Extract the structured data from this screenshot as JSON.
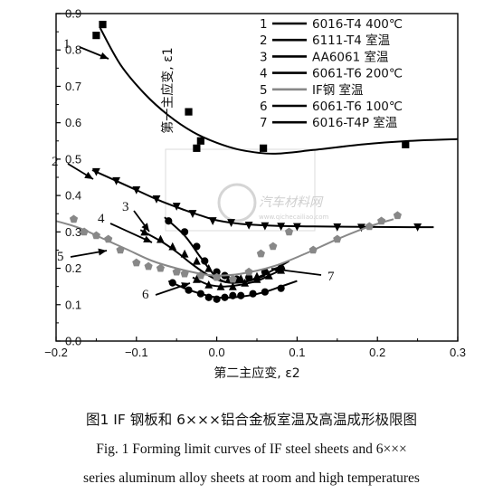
{
  "chart_data": {
    "type": "line",
    "xlabel": "第二主应变, ε2",
    "ylabel": "第一主应变, ε1",
    "xlim": [
      -0.2,
      0.3
    ],
    "ylim": [
      0.0,
      0.9
    ],
    "xticks": [
      "−0.2",
      "−0.1",
      "0.0",
      "0.1",
      "0.2",
      "0.3"
    ],
    "yticks": [
      "0.0",
      "0.1",
      "0.2",
      "0.3",
      "0.4",
      "0.5",
      "0.6",
      "0.7",
      "0.8",
      "0.9"
    ],
    "legend_position": "top-right",
    "legend": [
      {
        "num": "1",
        "label": "6016-T4 400℃",
        "color": "#000000"
      },
      {
        "num": "2",
        "label": "6111-T4 室温",
        "color": "#000000"
      },
      {
        "num": "3",
        "label": "AA6061 室温",
        "color": "#000000"
      },
      {
        "num": "4",
        "label": "6061-T6 200℃",
        "color": "#000000"
      },
      {
        "num": "5",
        "label": "IF钢 室温",
        "color": "#888888"
      },
      {
        "num": "6",
        "label": "6061-T6 100℃",
        "color": "#000000"
      },
      {
        "num": "7",
        "label": "6016-T4P 室温",
        "color": "#000000"
      }
    ],
    "series": [
      {
        "num": "1",
        "marker": "square",
        "color": "#000000",
        "curve": [
          [
            -0.145,
            0.86
          ],
          [
            -0.12,
            0.76
          ],
          [
            -0.09,
            0.68
          ],
          [
            -0.06,
            0.62
          ],
          [
            -0.03,
            0.575
          ],
          [
            0.0,
            0.545
          ],
          [
            0.03,
            0.525
          ],
          [
            0.07,
            0.515
          ],
          [
            0.12,
            0.525
          ],
          [
            0.18,
            0.54
          ],
          [
            0.24,
            0.55
          ],
          [
            0.3,
            0.555
          ]
        ],
        "points": [
          [
            -0.15,
            0.84
          ],
          [
            -0.142,
            0.87
          ],
          [
            -0.035,
            0.63
          ],
          [
            -0.025,
            0.53
          ],
          [
            -0.02,
            0.55
          ],
          [
            0.058,
            0.53
          ],
          [
            0.235,
            0.54
          ]
        ]
      },
      {
        "num": "2",
        "marker": "triangle-down",
        "color": "#000000",
        "curve": [
          [
            -0.155,
            0.47
          ],
          [
            -0.13,
            0.445
          ],
          [
            -0.1,
            0.415
          ],
          [
            -0.07,
            0.385
          ],
          [
            -0.04,
            0.36
          ],
          [
            -0.02,
            0.345
          ],
          [
            0.0,
            0.332
          ],
          [
            0.03,
            0.322
          ],
          [
            0.07,
            0.317
          ],
          [
            0.12,
            0.315
          ],
          [
            0.18,
            0.314
          ],
          [
            0.24,
            0.313
          ],
          [
            0.27,
            0.313
          ]
        ],
        "points": [
          [
            -0.15,
            0.465
          ],
          [
            -0.125,
            0.44
          ],
          [
            -0.1,
            0.415
          ],
          [
            -0.075,
            0.39
          ],
          [
            -0.05,
            0.37
          ],
          [
            -0.03,
            0.35
          ],
          [
            -0.005,
            0.33
          ],
          [
            0.018,
            0.325
          ],
          [
            0.04,
            0.318
          ],
          [
            0.06,
            0.316
          ],
          [
            0.08,
            0.315
          ],
          [
            0.1,
            0.314
          ],
          [
            0.15,
            0.313
          ],
          [
            0.18,
            0.312
          ],
          [
            0.25,
            0.313
          ]
        ]
      },
      {
        "num": "3",
        "marker": "circle",
        "color": "#000000",
        "curve": [
          [
            -0.065,
            0.34
          ],
          [
            -0.04,
            0.29
          ],
          [
            -0.02,
            0.23
          ],
          [
            0.0,
            0.175
          ],
          [
            0.02,
            0.16
          ],
          [
            0.045,
            0.17
          ],
          [
            0.07,
            0.195
          ],
          [
            0.09,
            0.22
          ]
        ],
        "points": [
          [
            -0.06,
            0.33
          ],
          [
            -0.04,
            0.3
          ],
          [
            -0.025,
            0.26
          ],
          [
            -0.015,
            0.22
          ],
          [
            0.0,
            0.19
          ],
          [
            0.01,
            0.18
          ],
          [
            0.025,
            0.17
          ],
          [
            0.04,
            0.175
          ],
          [
            0.06,
            0.19
          ],
          [
            0.08,
            0.2
          ]
        ]
      },
      {
        "num": "4",
        "marker": "triangle-up",
        "color": "#000000",
        "curve": [
          [
            -0.095,
            0.305
          ],
          [
            -0.07,
            0.275
          ],
          [
            -0.05,
            0.245
          ],
          [
            -0.03,
            0.21
          ],
          [
            -0.01,
            0.18
          ],
          [
            0.005,
            0.165
          ],
          [
            0.02,
            0.16
          ],
          [
            0.04,
            0.165
          ],
          [
            0.06,
            0.18
          ]
        ],
        "points": [
          [
            -0.09,
            0.3
          ],
          [
            -0.07,
            0.28
          ],
          [
            -0.055,
            0.26
          ],
          [
            -0.04,
            0.24
          ],
          [
            -0.025,
            0.22
          ],
          [
            -0.01,
            0.2
          ],
          [
            0.0,
            0.18
          ],
          [
            0.015,
            0.17
          ],
          [
            0.03,
            0.172
          ],
          [
            0.05,
            0.178
          ]
        ]
      },
      {
        "num": "5",
        "marker": "pentagon",
        "color": "#888888",
        "curve": [
          [
            -0.2,
            0.33
          ],
          [
            -0.17,
            0.31
          ],
          [
            -0.14,
            0.28
          ],
          [
            -0.11,
            0.25
          ],
          [
            -0.08,
            0.22
          ],
          [
            -0.05,
            0.2
          ],
          [
            -0.02,
            0.185
          ],
          [
            0.0,
            0.18
          ],
          [
            0.03,
            0.185
          ],
          [
            0.07,
            0.205
          ],
          [
            0.11,
            0.24
          ],
          [
            0.15,
            0.28
          ],
          [
            0.19,
            0.315
          ],
          [
            0.22,
            0.335
          ]
        ],
        "points": [
          [
            -0.178,
            0.335
          ],
          [
            -0.165,
            0.3
          ],
          [
            -0.15,
            0.29
          ],
          [
            -0.135,
            0.28
          ],
          [
            -0.12,
            0.25
          ],
          [
            -0.1,
            0.215
          ],
          [
            -0.085,
            0.205
          ],
          [
            -0.07,
            0.2
          ],
          [
            -0.05,
            0.19
          ],
          [
            -0.04,
            0.185
          ],
          [
            -0.02,
            0.18
          ],
          [
            0.0,
            0.175
          ],
          [
            0.02,
            0.17
          ],
          [
            0.04,
            0.19
          ],
          [
            0.055,
            0.24
          ],
          [
            0.07,
            0.26
          ],
          [
            0.09,
            0.3
          ],
          [
            0.12,
            0.25
          ],
          [
            0.15,
            0.28
          ],
          [
            0.19,
            0.315
          ],
          [
            0.205,
            0.33
          ],
          [
            0.225,
            0.345
          ]
        ]
      },
      {
        "num": "6",
        "marker": "circle",
        "color": "#000000",
        "curve": [
          [
            -0.06,
            0.165
          ],
          [
            -0.04,
            0.145
          ],
          [
            -0.02,
            0.13
          ],
          [
            0.0,
            0.12
          ],
          [
            0.02,
            0.12
          ],
          [
            0.04,
            0.125
          ],
          [
            0.06,
            0.135
          ],
          [
            0.08,
            0.15
          ],
          [
            0.1,
            0.165
          ]
        ],
        "points": [
          [
            -0.055,
            0.16
          ],
          [
            -0.035,
            0.14
          ],
          [
            -0.02,
            0.13
          ],
          [
            -0.01,
            0.12
          ],
          [
            0.0,
            0.115
          ],
          [
            0.01,
            0.12
          ],
          [
            0.02,
            0.125
          ],
          [
            0.03,
            0.125
          ],
          [
            0.045,
            0.13
          ],
          [
            0.06,
            0.135
          ],
          [
            0.08,
            0.145
          ]
        ]
      },
      {
        "num": "7",
        "marker": "triangle-up",
        "color": "#000000",
        "curve": [
          [
            -0.03,
            0.175
          ],
          [
            -0.01,
            0.155
          ],
          [
            0.01,
            0.15
          ],
          [
            0.03,
            0.155
          ],
          [
            0.05,
            0.165
          ],
          [
            0.07,
            0.185
          ],
          [
            0.085,
            0.2
          ]
        ],
        "points": [
          [
            -0.025,
            0.17
          ],
          [
            -0.01,
            0.155
          ],
          [
            0.005,
            0.15
          ],
          [
            0.02,
            0.15
          ],
          [
            0.035,
            0.16
          ],
          [
            0.05,
            0.17
          ],
          [
            0.065,
            0.18
          ],
          [
            0.08,
            0.195
          ]
        ]
      }
    ],
    "annotations": [
      {
        "num": "1",
        "text": "1"
      },
      {
        "num": "2",
        "text": "2"
      },
      {
        "num": "3",
        "text": "3"
      },
      {
        "num": "4",
        "text": "4"
      },
      {
        "num": "5",
        "text": "5"
      },
      {
        "num": "6",
        "text": "6"
      },
      {
        "num": "7",
        "text": "7"
      }
    ]
  },
  "caption": {
    "zh": "图1   IF 钢板和 6×××铝合金板室温及高温成形极限图",
    "en_line1": "Fig. 1  Forming limit curves of IF steel sheets and 6×××",
    "en_line2": "series aluminum alloy sheets at room and high temperatures"
  },
  "watermark": {
    "text": "汽车材料网",
    "subtext": "www.qichecailiao.com"
  }
}
